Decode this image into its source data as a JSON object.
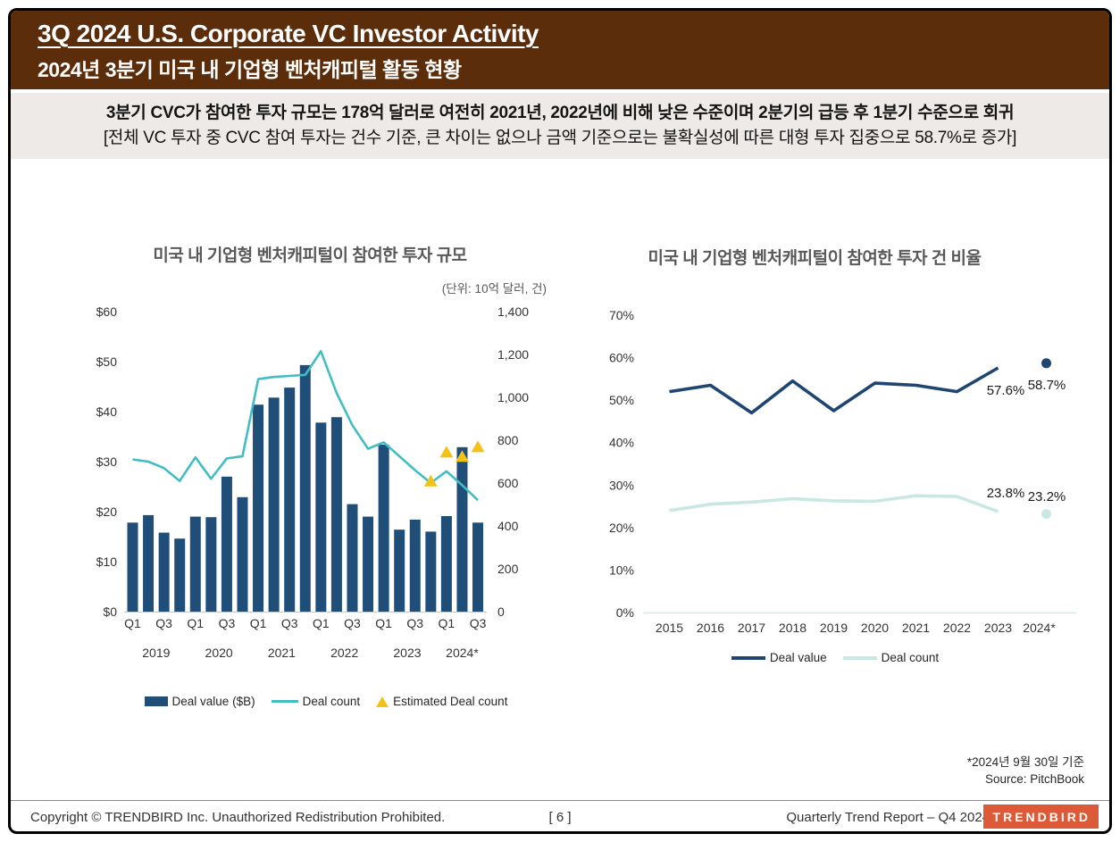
{
  "header": {
    "title": "3Q 2024 U.S. Corporate VC Investor Activity",
    "subtitle": "2024년 3분기 미국 내 기업형 벤처캐피털 활동 현황"
  },
  "summary": {
    "line1": "3분기 CVC가 참여한 투자 규모는 178억 달러로 여전히 2021년, 2022년에 비해 낮은 수준이며 2분기의 급등 후 1분기 수준으로 회귀",
    "line2": "[전체 VC 투자 중 CVC 참여 투자는 건수 기준, 큰 차이는 없으나 금액 기준으로는 불확실성에 따른 대형 투자 집중으로 58.7%로 증가]"
  },
  "colors": {
    "header_brown": "#5B2D0B",
    "summary_bg": "#EDEAE7",
    "bar_navy": "#1F4E79",
    "line_teal": "#42BEC3",
    "triangle_gold": "#F2C218",
    "line_navy_dark": "#1E4670",
    "line_teal_pale": "#C9E8E4",
    "logo_orange": "#DC5A38"
  },
  "chart_data": [
    {
      "type": "bar+line",
      "title": "미국 내 기업형 벤처캐피털이 참여한 투자 규모",
      "unit_note": "(단위: 10억 달러, 건)",
      "categories": [
        "2019 Q1",
        "2019 Q2",
        "2019 Q3",
        "2019 Q4",
        "2020 Q1",
        "2020 Q2",
        "2020 Q3",
        "2020 Q4",
        "2021 Q1",
        "2021 Q2",
        "2021 Q3",
        "2021 Q4",
        "2022 Q1",
        "2022 Q2",
        "2022 Q3",
        "2022 Q4",
        "2023 Q1",
        "2023 Q2",
        "2023 Q3",
        "2023 Q4",
        "2024 Q1",
        "2024 Q2",
        "2024 Q3"
      ],
      "x_year_groups": [
        {
          "label": "2019",
          "start": 0,
          "end": 3
        },
        {
          "label": "2020",
          "start": 4,
          "end": 7
        },
        {
          "label": "2021",
          "start": 8,
          "end": 11
        },
        {
          "label": "2022",
          "start": 12,
          "end": 15
        },
        {
          "label": "2023",
          "start": 16,
          "end": 19
        },
        {
          "label": "2024*",
          "start": 20,
          "end": 22
        }
      ],
      "series": {
        "deal_value_billion": [
          17.8,
          19.3,
          15.8,
          14.6,
          19.0,
          18.9,
          27.0,
          22.9,
          41.4,
          42.8,
          44.8,
          49.3,
          37.8,
          38.9,
          21.5,
          19.0,
          33.4,
          16.4,
          18.4,
          16.0,
          19.1,
          32.9,
          17.8
        ],
        "deal_count": [
          710,
          700,
          670,
          610,
          720,
          620,
          715,
          725,
          1085,
          1095,
          1100,
          1105,
          1215,
          1020,
          870,
          760,
          790,
          725,
          660,
          600,
          655,
          590,
          520
        ],
        "estimated_deal_count": [
          {
            "category": "2023 Q4",
            "index": 19,
            "value": 605
          },
          {
            "category": "2024 Q1",
            "index": 20,
            "value": 740
          },
          {
            "category": "2024 Q2",
            "index": 21,
            "value": 720
          },
          {
            "category": "2024 Q3",
            "index": 22,
            "value": 765
          }
        ]
      },
      "left_axis": {
        "min": 0,
        "max": 60,
        "step": 10,
        "ticks": [
          "$0",
          "$10",
          "$20",
          "$30",
          "$40",
          "$50",
          "$60"
        ]
      },
      "right_axis": {
        "min": 0,
        "max": 1400,
        "step": 200,
        "ticks": [
          "0",
          "200",
          "400",
          "600",
          "800",
          "1,000",
          "1,200",
          "1,400"
        ]
      },
      "legend": [
        "Deal value ($B)",
        "Deal count",
        "Estimated Deal count"
      ]
    },
    {
      "type": "line",
      "title": "미국 내 기업형 벤처캐피털이 참여한 투자 건 비율",
      "categories": [
        "2015",
        "2016",
        "2017",
        "2018",
        "2019",
        "2020",
        "2021",
        "2022",
        "2023",
        "2024*"
      ],
      "y_axis": {
        "min": 0,
        "max": 70,
        "step": 10,
        "ticks": [
          "0%",
          "10%",
          "20%",
          "30%",
          "40%",
          "50%",
          "60%",
          "70%"
        ]
      },
      "series": [
        {
          "name": "Deal value",
          "color_key": "line_navy_dark",
          "values": [
            52.0,
            53.5,
            47.0,
            54.5,
            47.5,
            54.0,
            53.5,
            52.0,
            57.6
          ],
          "projected_2024": 58.7,
          "last_value_label": "57.6%",
          "projected_label": "58.7%"
        },
        {
          "name": "Deal count",
          "color_key": "line_teal_pale",
          "values": [
            24.0,
            25.5,
            26.0,
            26.8,
            26.3,
            26.2,
            27.5,
            27.3,
            23.8
          ],
          "projected_2024": 23.2,
          "last_value_label": "23.8%",
          "projected_label": "23.2%"
        }
      ],
      "legend": [
        "Deal value",
        "Deal count"
      ]
    }
  ],
  "notes": {
    "asof": "*2024년 9월 30일 기준",
    "source": "Source: PitchBook"
  },
  "footer": {
    "copyright": "Copyright © TRENDBIRD Inc. Unauthorized Redistribution Prohibited.",
    "page": "[ 6 ]",
    "report": "Quarterly Trend Report – Q4 2024",
    "logo": "TRENDBIRD"
  }
}
